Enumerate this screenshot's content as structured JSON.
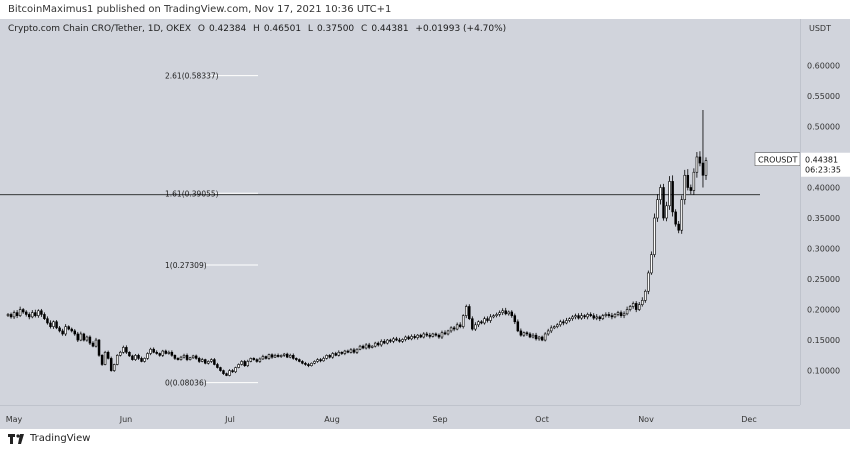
{
  "header": {
    "publisher_text": "BitcoinMaximus1 published on TradingView.com, Nov 17, 2021 10:36 UTC+1"
  },
  "legend": {
    "symbol": "Crypto.com Chain CRO/Tether, 1D, OKEX",
    "open_label": "O",
    "open": "0.42384",
    "high_label": "H",
    "high": "0.46501",
    "low_label": "L",
    "low": "0.37500",
    "close_label": "C",
    "close": "0.44381",
    "change": "+0.01993 (+4.70%)"
  },
  "axis": {
    "currency": "USDT"
  },
  "price_tag": {
    "symbol": "CROUSDT",
    "price": "0.44381",
    "countdown": "06:23:35"
  },
  "footer": {
    "brand": "TradingView"
  },
  "colors": {
    "background": "#d1d4dc",
    "candle_body_up": "#ffffff",
    "candle_body_down": "#000000",
    "candle_outline": "#000000",
    "fib_line": "#ffffff",
    "horizontal_line": "#000000"
  },
  "chart_data": {
    "type": "candlestick",
    "title": "Crypto.com Chain CRO/Tether, 1D, OKEX",
    "x_ticks": [
      "May",
      "Jun",
      "Jul",
      "Aug",
      "Sep",
      "Oct",
      "Nov",
      "Dec"
    ],
    "y_ticks": [
      0.1,
      0.15,
      0.2,
      0.25,
      0.3,
      0.35,
      0.4,
      0.45,
      0.5,
      0.55,
      0.6
    ],
    "y_tick_labels": [
      "0.10000",
      "0.15000",
      "0.20000",
      "0.25000",
      "0.30000",
      "0.35000",
      "0.40000",
      "0.45000",
      "0.50000",
      "0.55000",
      "0.60000"
    ],
    "ylim": [
      0.06,
      0.64
    ],
    "fib_levels": [
      {
        "label": "2.61(0.58337)",
        "value": 0.58337
      },
      {
        "label": "1.61(0.39055)",
        "value": 0.39055
      },
      {
        "label": "1(0.27309)",
        "value": 0.27309
      },
      {
        "label": "0(0.08036)",
        "value": 0.08036
      }
    ],
    "horizontal_line": 0.3881,
    "last_price": 0.44381,
    "series_close": [
      0.192,
      0.188,
      0.195,
      0.19,
      0.2,
      0.196,
      0.192,
      0.188,
      0.195,
      0.19,
      0.198,
      0.192,
      0.185,
      0.178,
      0.172,
      0.18,
      0.17,
      0.165,
      0.16,
      0.172,
      0.168,
      0.165,
      0.16,
      0.15,
      0.16,
      0.15,
      0.155,
      0.145,
      0.14,
      0.15,
      0.125,
      0.11,
      0.13,
      0.12,
      0.1,
      0.11,
      0.125,
      0.13,
      0.138,
      0.13,
      0.124,
      0.118,
      0.125,
      0.12,
      0.115,
      0.12,
      0.128,
      0.135,
      0.13,
      0.128,
      0.125,
      0.132,
      0.128,
      0.13,
      0.125,
      0.12,
      0.118,
      0.122,
      0.125,
      0.118,
      0.121,
      0.124,
      0.12,
      0.115,
      0.118,
      0.112,
      0.115,
      0.118,
      0.11,
      0.105,
      0.1,
      0.095,
      0.092,
      0.1,
      0.098,
      0.105,
      0.11,
      0.115,
      0.108,
      0.115,
      0.12,
      0.118,
      0.115,
      0.119,
      0.123,
      0.12,
      0.126,
      0.122,
      0.125,
      0.123,
      0.125,
      0.127,
      0.122,
      0.125,
      0.12,
      0.118,
      0.115,
      0.112,
      0.11,
      0.108,
      0.112,
      0.115,
      0.118,
      0.116,
      0.12,
      0.125,
      0.122,
      0.128,
      0.125,
      0.13,
      0.128,
      0.132,
      0.13,
      0.134,
      0.13,
      0.135,
      0.14,
      0.137,
      0.142,
      0.138,
      0.14,
      0.145,
      0.142,
      0.148,
      0.145,
      0.15,
      0.148,
      0.152,
      0.15,
      0.148,
      0.151,
      0.155,
      0.152,
      0.156,
      0.154,
      0.158,
      0.155,
      0.16,
      0.158,
      0.156,
      0.16,
      0.158,
      0.155,
      0.162,
      0.16,
      0.165,
      0.17,
      0.168,
      0.175,
      0.172,
      0.19,
      0.205,
      0.185,
      0.168,
      0.175,
      0.18,
      0.178,
      0.185,
      0.182,
      0.188,
      0.19,
      0.192,
      0.195,
      0.198,
      0.193,
      0.196,
      0.19,
      0.18,
      0.165,
      0.158,
      0.162,
      0.16,
      0.155,
      0.158,
      0.152,
      0.155,
      0.15,
      0.16,
      0.165,
      0.17,
      0.172,
      0.175,
      0.18,
      0.178,
      0.182,
      0.185,
      0.188,
      0.19,
      0.186,
      0.19,
      0.188,
      0.192,
      0.19,
      0.186,
      0.188,
      0.185,
      0.19,
      0.192,
      0.19,
      0.188,
      0.192,
      0.195,
      0.19,
      0.193,
      0.2,
      0.205,
      0.21,
      0.2,
      0.208,
      0.215,
      0.23,
      0.26,
      0.29,
      0.35,
      0.38,
      0.4,
      0.35,
      0.37,
      0.41,
      0.36,
      0.34,
      0.33,
      0.38,
      0.42,
      0.4,
      0.395,
      0.425,
      0.45,
      0.44,
      0.42,
      0.444
    ],
    "spikes": [
      {
        "index": 229,
        "high": 0.527,
        "low": 0.4
      },
      {
        "index": 232,
        "high": 0.465,
        "low": 0.375
      }
    ]
  }
}
